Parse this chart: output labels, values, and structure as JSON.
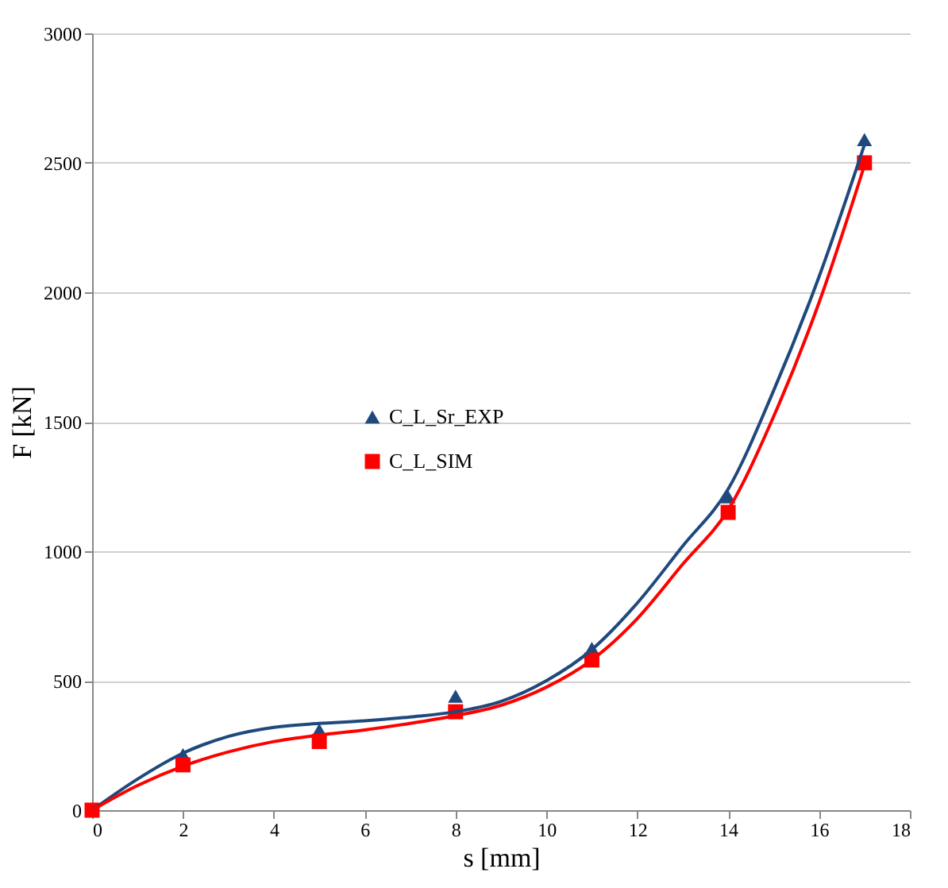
{
  "chart_data": {
    "type": "scatter",
    "xlabel": "s [mm]",
    "ylabel": "F [kN]",
    "xlim": [
      0,
      18
    ],
    "xticks": [
      0,
      2,
      4,
      6,
      8,
      10,
      12,
      14,
      16,
      18
    ],
    "ylim": [
      0,
      3000
    ],
    "yticks": [
      0,
      500,
      1000,
      1500,
      2000,
      2500,
      3000
    ],
    "grid": "y",
    "legend": "left",
    "series": [
      {
        "name": "C_L_Sr_EXP",
        "marker": "triangle",
        "color": "#1f497d",
        "x": [
          2,
          5,
          8,
          11,
          14,
          17
        ],
        "values": [
          215,
          310,
          440,
          625,
          1210,
          2590
        ]
      },
      {
        "name": "C_L_SIM",
        "marker": "square",
        "color": "#ff0000",
        "x": [
          0,
          2,
          5,
          8,
          11,
          14,
          17
        ],
        "values": [
          0,
          175,
          265,
          380,
          580,
          1150,
          2500
        ]
      },
      {
        "type": "line",
        "marker": "none",
        "line_style": "solid",
        "color": "#1f497d",
        "x": [
          0,
          1,
          2,
          3,
          4,
          5,
          6,
          7,
          8,
          9,
          10,
          11,
          12,
          13,
          14,
          15,
          16,
          17
        ],
        "values": [
          0,
          120,
          220,
          285,
          320,
          335,
          345,
          360,
          380,
          420,
          500,
          620,
          800,
          1020,
          1240,
          1620,
          2060,
          2570
        ]
      },
      {
        "type": "line",
        "marker": "none",
        "line_style": "solid",
        "color": "#ff0000",
        "x": [
          0,
          1,
          2,
          3,
          4,
          5,
          6,
          7,
          8,
          9,
          10,
          11,
          12,
          13,
          14,
          15,
          16,
          17
        ],
        "values": [
          0,
          95,
          170,
          225,
          265,
          290,
          310,
          335,
          365,
          405,
          475,
          580,
          740,
          950,
          1160,
          1520,
          1960,
          2490
        ]
      }
    ]
  }
}
